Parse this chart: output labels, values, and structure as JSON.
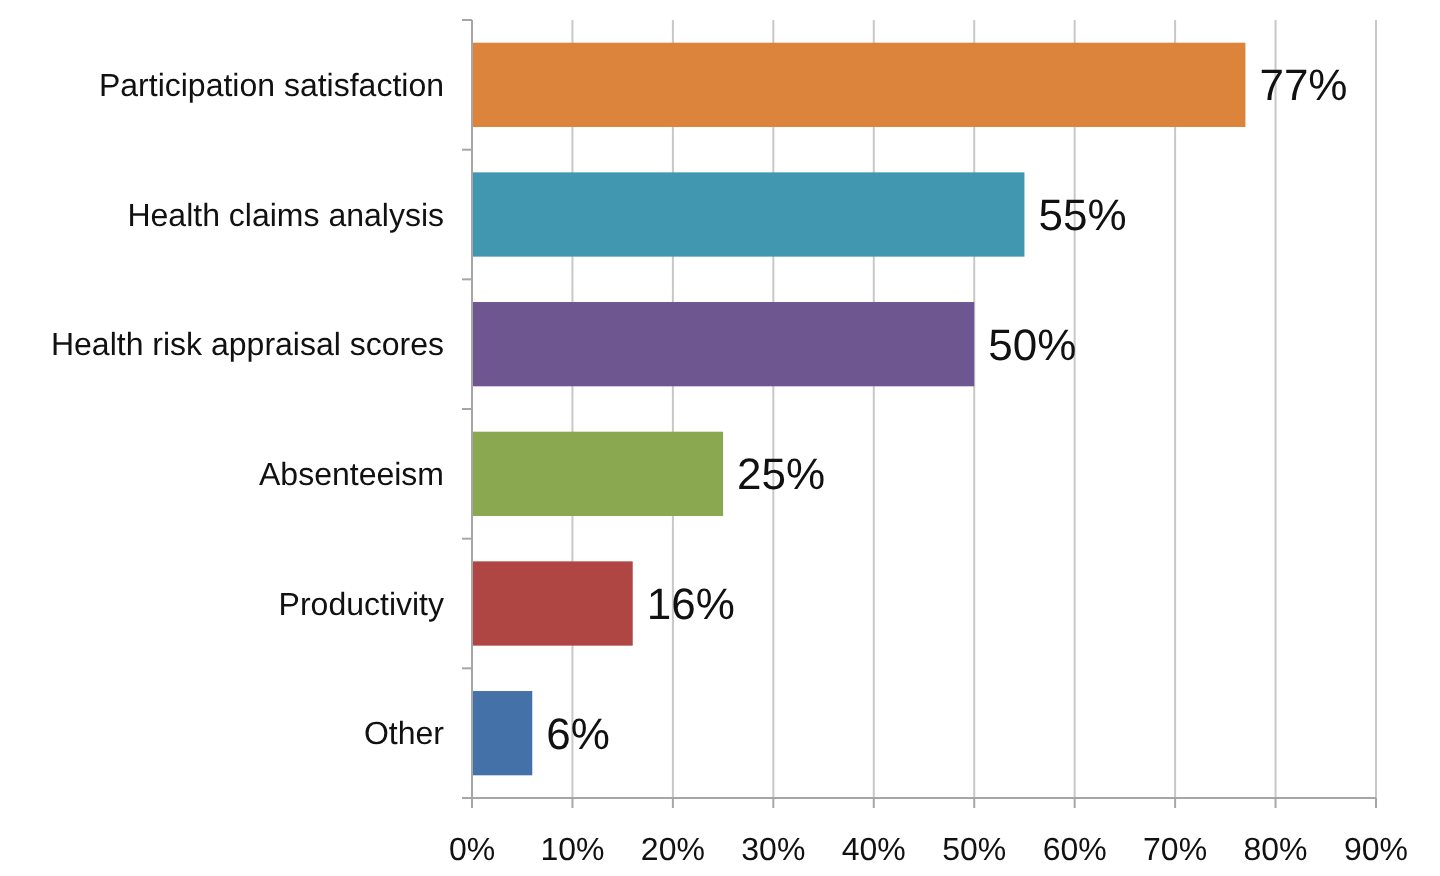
{
  "chart_data": {
    "type": "bar",
    "orientation": "horizontal",
    "categories": [
      "Participation satisfaction",
      "Health claims analysis",
      "Health risk appraisal scores",
      "Absenteeism",
      "Productivity",
      "Other"
    ],
    "values": [
      77,
      55,
      50,
      25,
      16,
      6
    ],
    "colors": [
      "#dd843c",
      "#4097af",
      "#6e5690",
      "#89a84f",
      "#b04644",
      "#4472a8"
    ],
    "value_labels": [
      "77%",
      "55%",
      "50%",
      "25%",
      "16%",
      "6%"
    ],
    "xlim": [
      0,
      90
    ],
    "xticks": [
      {
        "value": 0,
        "label": "0%"
      },
      {
        "value": 10,
        "label": "10%"
      },
      {
        "value": 20,
        "label": "20%"
      },
      {
        "value": 30,
        "label": "30%"
      },
      {
        "value": 40,
        "label": "40%"
      },
      {
        "value": 50,
        "label": "50%"
      },
      {
        "value": 60,
        "label": "60%"
      },
      {
        "value": 70,
        "label": "70%"
      },
      {
        "value": 80,
        "label": "80%"
      },
      {
        "value": 90,
        "label": "90%"
      }
    ],
    "grid": "x"
  }
}
